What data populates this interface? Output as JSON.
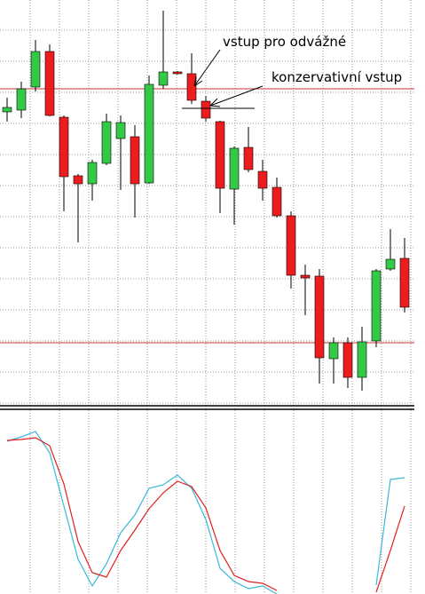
{
  "chart_data": {
    "type": "candlestick",
    "categories": [
      null,
      null,
      null,
      null,
      null,
      null,
      null,
      null,
      null,
      null,
      null,
      null,
      null,
      null,
      null,
      null,
      null,
      null,
      null,
      null,
      null,
      null,
      null,
      null,
      null,
      null,
      null,
      null,
      null
    ],
    "open": [
      334,
      336,
      362,
      402,
      328,
      262,
      253,
      276,
      304,
      306,
      254,
      364,
      379,
      377,
      346,
      323,
      247,
      294,
      267,
      249,
      217,
      150,
      149,
      56,
      74,
      35,
      76,
      157,
      169
    ],
    "high": [
      350,
      368,
      415,
      410,
      330,
      264,
      280,
      332,
      330,
      319,
      375,
      448,
      380,
      400,
      352,
      324,
      295,
      317,
      280,
      260,
      222,
      162,
      157,
      80,
      80,
      92,
      157,
      202,
      192
    ],
    "low": [
      323,
      327,
      357,
      329,
      222,
      187,
      234,
      274,
      246,
      215,
      253,
      360,
      376,
      343,
      323,
      220,
      207,
      266,
      234,
      215,
      135,
      105,
      28,
      28,
      23,
      20,
      69,
      155,
      108
    ],
    "close": [
      339,
      360,
      402,
      330,
      261,
      253,
      277,
      323,
      322,
      253,
      365,
      379,
      377,
      347,
      327,
      248,
      293,
      269,
      248,
      217,
      150,
      147,
      57,
      74,
      35,
      75,
      155,
      168,
      114
    ],
    "up_color": "#33c846",
    "down_color": "#ee1c1c",
    "ylim": [
      0,
      460
    ],
    "yticks": [
      426,
      391,
      356,
      321,
      286,
      251,
      216,
      181,
      146,
      111,
      76,
      41,
      6
    ],
    "grid": true,
    "levels": [
      360,
      74
    ],
    "level_color": "#cc3333",
    "annotations": [
      "vstup pro odvážné",
      "konzervativní vstup"
    ],
    "oscillator": {
      "type": "line",
      "ylim": [
        0,
        207
      ],
      "series": [
        {
          "color": "#3bb8d8",
          "values": [
            172,
            177,
            183,
            159,
            99,
            39,
            9,
            34,
            69,
            89,
            119,
            123,
            134,
            119,
            84,
            29,
            14,
            6,
            9,
            0,
            null,
            null,
            null,
            null,
            null,
            null,
            10,
            129,
            131
          ]
        },
        {
          "color": "#e02020",
          "values": [
            173,
            174,
            176,
            167,
            124,
            59,
            24,
            19,
            49,
            72,
            96,
            114,
            127,
            121,
            97,
            49,
            21,
            14,
            12,
            4,
            null,
            null,
            null,
            null,
            null,
            null,
            2,
            49,
            99
          ]
        }
      ]
    }
  }
}
